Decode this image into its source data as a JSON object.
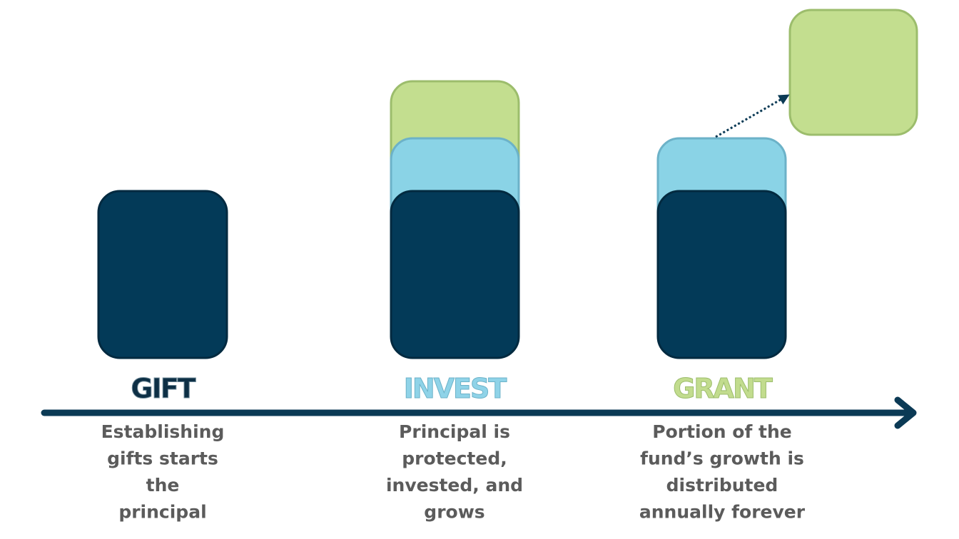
{
  "stages": [
    {
      "label": "GIFT",
      "description": [
        "Establishing",
        "gifts starts",
        "the",
        "principal"
      ]
    },
    {
      "label": "INVEST",
      "description": [
        "Principal is",
        "protected,",
        "invested, and",
        "grows"
      ]
    },
    {
      "label": "GRANT",
      "description": [
        "Portion of the",
        "fund’s growth is",
        "distributed",
        "annually forever"
      ]
    }
  ]
}
